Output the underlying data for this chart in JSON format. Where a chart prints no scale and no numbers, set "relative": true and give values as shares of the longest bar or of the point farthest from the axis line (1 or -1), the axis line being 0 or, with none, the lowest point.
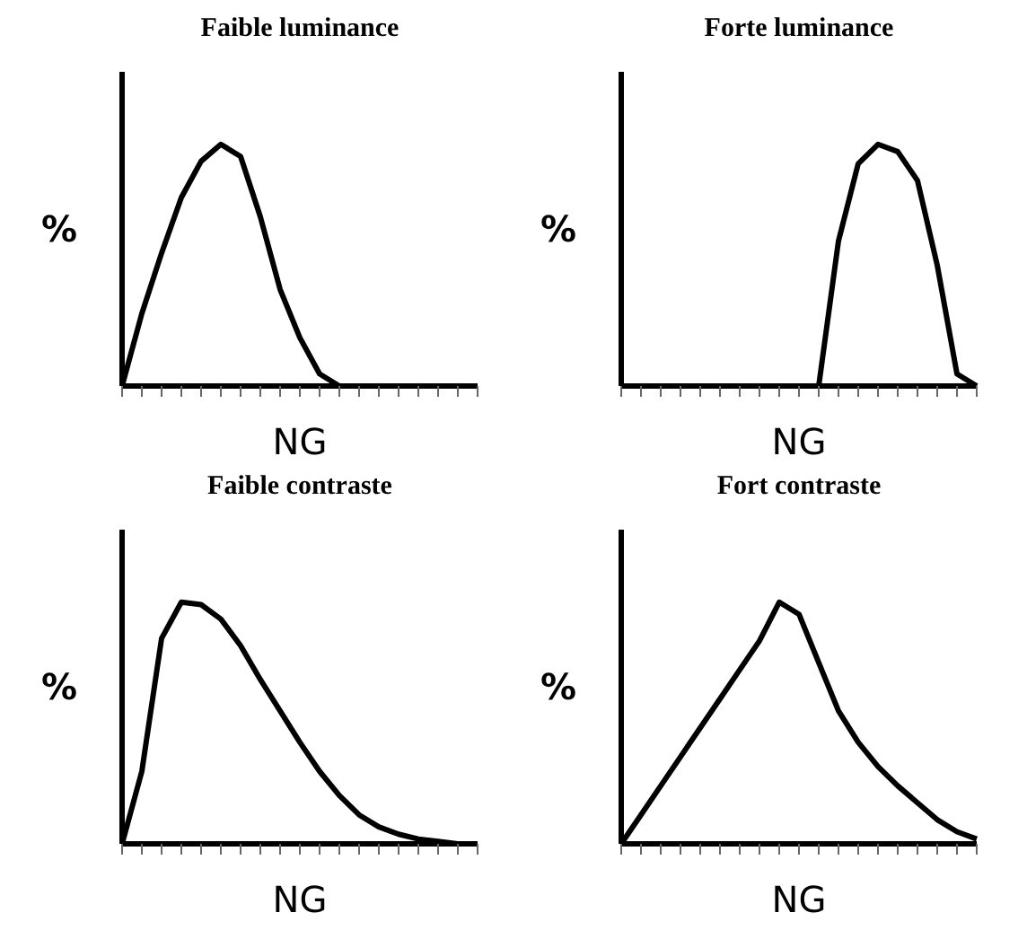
{
  "chart_data": [
    {
      "type": "line",
      "title": "Faible luminance",
      "xlabel": "NG",
      "ylabel": "%",
      "relative": true,
      "grid": false,
      "legend": false,
      "marker": "none",
      "line_style": "solid",
      "categories": [
        null,
        null,
        null,
        null,
        null,
        null,
        null,
        null,
        null,
        null,
        null,
        null,
        null,
        null,
        null,
        null,
        null,
        null,
        null
      ],
      "series": [
        {
          "color": "#000000",
          "values": [
            0,
            0.3,
            0.55,
            0.78,
            0.93,
            1,
            0.95,
            0.7,
            0.4,
            0.2,
            0.05,
            0,
            0,
            0,
            0,
            0,
            0,
            0,
            0
          ]
        }
      ]
    },
    {
      "type": "line",
      "title": "Forte luminance",
      "xlabel": "NG",
      "ylabel": "%",
      "relative": true,
      "grid": false,
      "legend": false,
      "marker": "none",
      "line_style": "solid",
      "categories": [
        null,
        null,
        null,
        null,
        null,
        null,
        null,
        null,
        null,
        null,
        null,
        null,
        null,
        null,
        null,
        null,
        null,
        null,
        null
      ],
      "series": [
        {
          "color": "#000000",
          "values": [
            0,
            0,
            0,
            0,
            0,
            0,
            0,
            0,
            0,
            0,
            0,
            0.6,
            0.92,
            1,
            0.97,
            0.85,
            0.5,
            0.05,
            0
          ]
        }
      ]
    },
    {
      "type": "line",
      "title": "Faible contraste",
      "xlabel": "NG",
      "ylabel": "%",
      "relative": true,
      "grid": false,
      "legend": false,
      "marker": "none",
      "line_style": "solid",
      "categories": [
        null,
        null,
        null,
        null,
        null,
        null,
        null,
        null,
        null,
        null,
        null,
        null,
        null,
        null,
        null,
        null,
        null,
        null,
        null
      ],
      "series": [
        {
          "color": "#000000",
          "values": [
            0,
            0.3,
            0.85,
            1,
            0.99,
            0.93,
            0.82,
            0.68,
            0.55,
            0.42,
            0.3,
            0.2,
            0.12,
            0.07,
            0.04,
            0.02,
            0.01,
            0,
            0
          ]
        }
      ]
    },
    {
      "type": "line",
      "title": "Fort contraste",
      "xlabel": "NG",
      "ylabel": "%",
      "relative": true,
      "grid": false,
      "legend": false,
      "marker": "none",
      "line_style": "solid",
      "categories": [
        null,
        null,
        null,
        null,
        null,
        null,
        null,
        null,
        null,
        null,
        null,
        null,
        null,
        null,
        null,
        null,
        null,
        null,
        null
      ],
      "series": [
        {
          "color": "#000000",
          "values": [
            0,
            0.12,
            0.24,
            0.36,
            0.48,
            0.6,
            0.72,
            0.84,
            1,
            0.95,
            0.75,
            0.55,
            0.42,
            0.32,
            0.24,
            0.17,
            0.1,
            0.05,
            0.02
          ]
        }
      ]
    }
  ]
}
